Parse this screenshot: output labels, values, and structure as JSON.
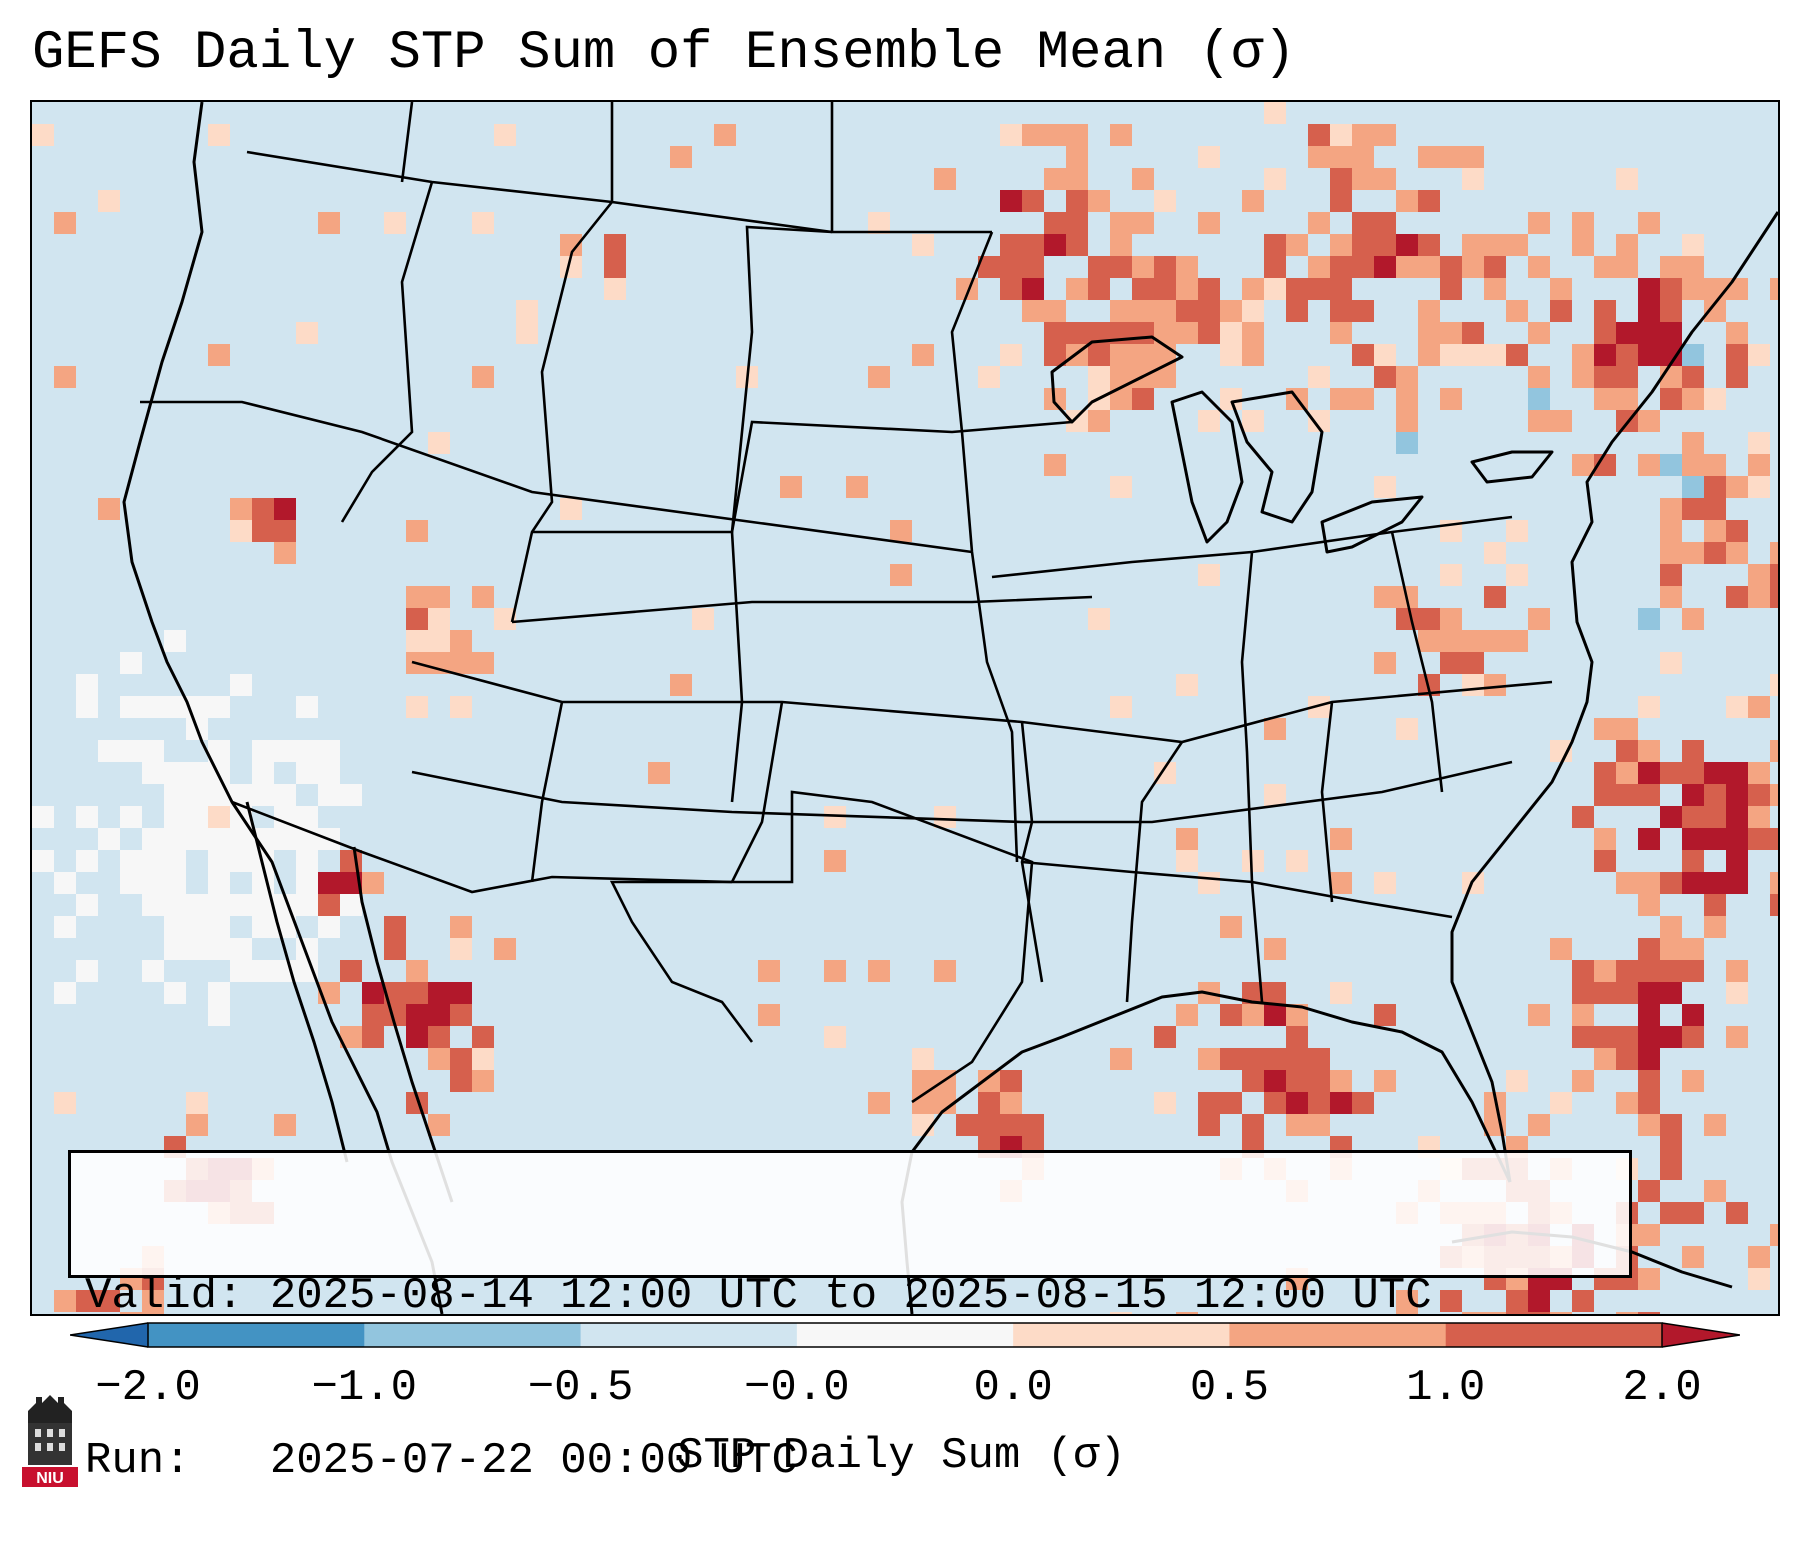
{
  "title": "GEFS Daily STP Sum of Ensemble Mean (σ)",
  "info": {
    "valid_line": "Valid: 2025-08-14 12:00 UTC to 2025-08-15 12:00 UTC",
    "run_line": "Run:   2025-07-22 00:00 UTC"
  },
  "colorbar": {
    "label": "STP Daily Sum (σ)",
    "ticks": [
      "−2.0",
      "−1.0",
      "−0.5",
      "−0.0",
      "0.0",
      "0.5",
      "1.0",
      "2.0"
    ],
    "bin_colors": [
      "#4393c3",
      "#92c5de",
      "#d1e5f0",
      "#f7f7f7",
      "#fddbc7",
      "#f4a582",
      "#d6604d"
    ],
    "under_color": "#2166ac",
    "over_color": "#b2182b"
  },
  "map": {
    "background_color": "#d1e5f0",
    "region": "Contiguous United States, southern Canada, northern Mexico, Gulf of Mexico, western Atlantic"
  },
  "logo": {
    "text": "NIU"
  }
}
